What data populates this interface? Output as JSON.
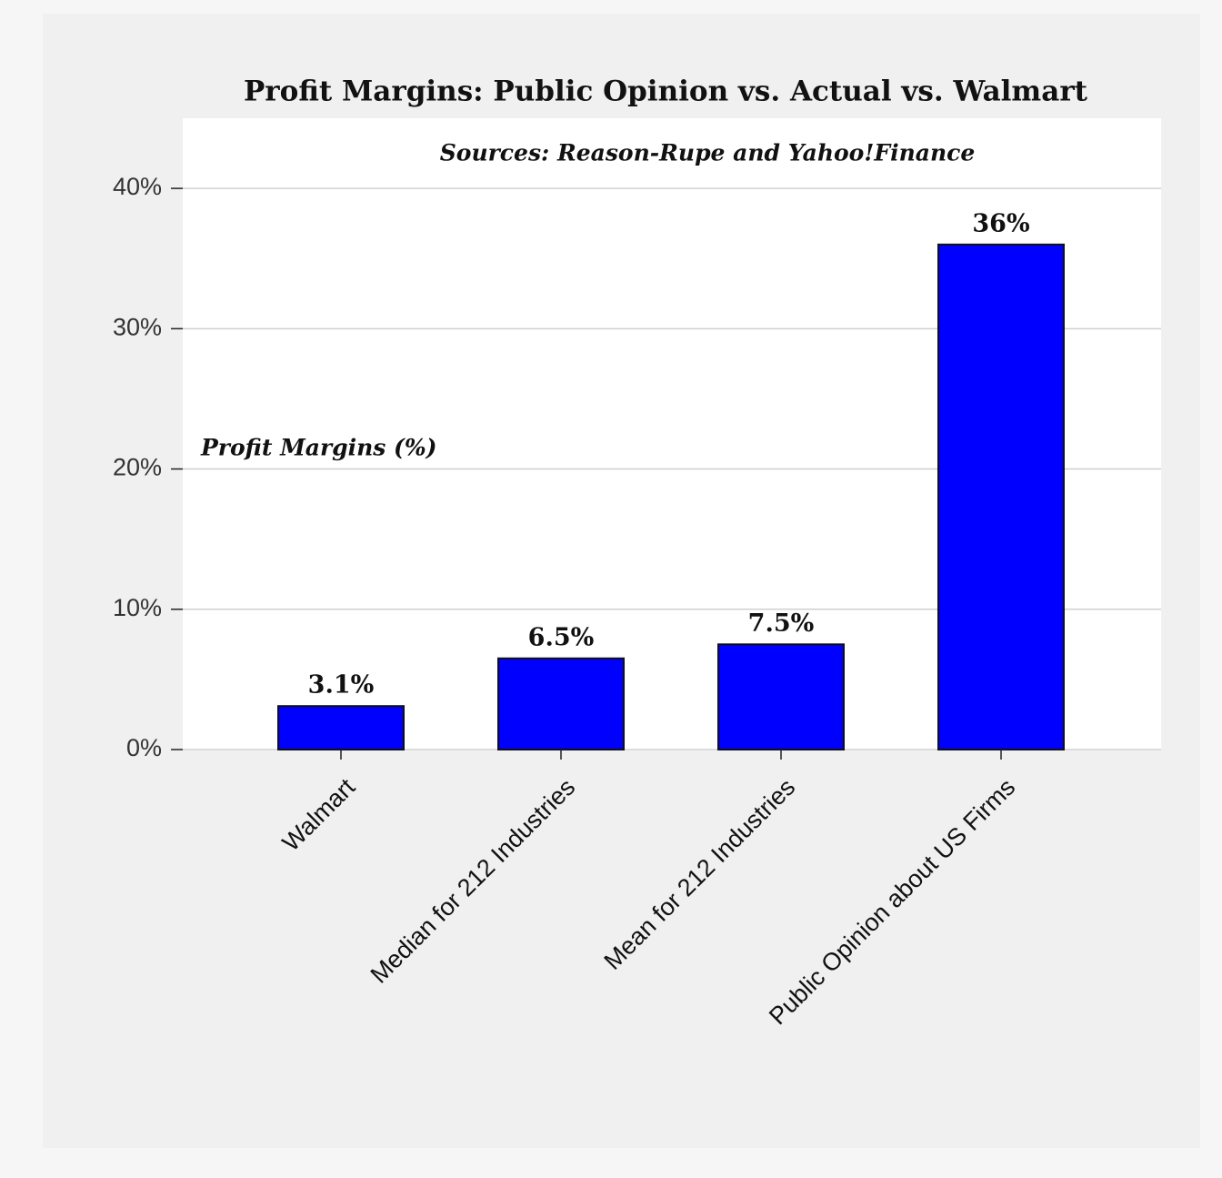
{
  "chart_data": {
    "type": "bar",
    "title": "Profit Margins: Public Opinion vs. Actual vs. Walmart",
    "subtitle": "Sources: Reason-Rupe and Yahoo!Finance",
    "annotation": "Profit Margins (%)",
    "categories": [
      "Walmart",
      "Median for 212 Industries",
      "Mean for 212 Industries",
      "Public Opinion about US Firms"
    ],
    "values": [
      3.1,
      6.5,
      7.5,
      36
    ],
    "value_labels": [
      "3.1%",
      "6.5%",
      "7.5%",
      "36%"
    ],
    "color": "#0000ff",
    "ylim": [
      0,
      45
    ],
    "yticks": [
      {
        "value": 0,
        "label": "0%"
      },
      {
        "value": 10,
        "label": "10%"
      },
      {
        "value": 20,
        "label": "20%"
      },
      {
        "value": 30,
        "label": "30%"
      },
      {
        "value": 40,
        "label": "40%"
      }
    ],
    "grid": true
  }
}
